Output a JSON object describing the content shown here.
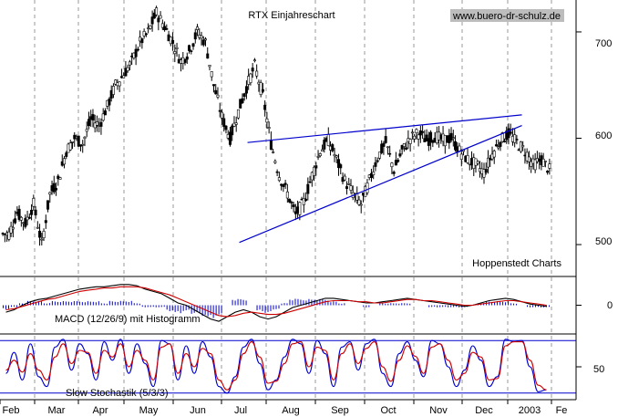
{
  "chart_data": [
    {
      "type": "candlestick",
      "title": "RTX Einjahreschart",
      "watermark": "www.buero-dr-schulz.de",
      "credit": "Hoppenstedt Charts",
      "y_ticks": [
        "700",
        "600",
        "500"
      ],
      "y_tick_values": [
        700,
        600,
        500
      ],
      "ylim": [
        470,
        730
      ],
      "x_tick_labels": [
        "Feb",
        "Mar",
        "Apr",
        "May",
        "Jun",
        "Jul",
        "Aug",
        "Sep",
        "Oct",
        "Nov",
        "Dec",
        "2003",
        "Fe"
      ],
      "close_series": [
        510,
        530,
        520,
        538,
        500,
        548,
        560,
        588,
        600,
        595,
        618,
        612,
        630,
        650,
        660,
        672,
        690,
        700,
        718,
        705,
        690,
        672,
        682,
        700,
        690,
        650,
        620,
        600,
        625,
        648,
        668,
        640,
        595,
        565,
        548,
        528,
        540,
        565,
        588,
        598,
        580,
        560,
        548,
        538,
        560,
        582,
        596,
        570,
        588,
        600,
        605,
        598,
        602,
        598,
        600,
        588,
        580,
        575,
        568,
        585,
        598,
        604,
        596,
        588,
        575,
        580,
        570
      ],
      "trendlines": [
        {
          "from": {
            "x": 29.5,
            "y": 596
          },
          "to": {
            "x": 63,
            "y": 622
          }
        },
        {
          "from": {
            "x": 28.5,
            "y": 502
          },
          "to": {
            "x": 63,
            "y": 612
          }
        }
      ],
      "color": "#000000",
      "trendline_color": "#0000cc"
    },
    {
      "type": "line",
      "title": "MACD (12/26/9) mit Histogramm",
      "y_ticks": [
        "0"
      ],
      "y_tick_values": [
        0
      ],
      "ylim": [
        -25,
        25
      ],
      "series": [
        {
          "values": [
            -6,
            -4,
            0,
            3,
            5,
            6,
            8,
            10,
            12,
            14,
            15,
            16,
            16,
            17,
            18,
            18,
            17,
            14,
            12,
            10,
            6,
            2,
            0,
            -4,
            -8,
            -12,
            -14,
            -10,
            -6,
            -4,
            -6,
            -10,
            -12,
            -10,
            -6,
            -2,
            0,
            2,
            4,
            6,
            6,
            5,
            4,
            3,
            2,
            2,
            3,
            4,
            5,
            6,
            5,
            4,
            3,
            2,
            1,
            0,
            -1,
            0,
            2,
            4,
            5,
            6,
            5,
            3,
            1,
            0,
            -1
          ],
          "color": "#000000"
        },
        {
          "values": [
            -4,
            -3,
            -1,
            1,
            3,
            5,
            6,
            8,
            10,
            12,
            13,
            14,
            15,
            15,
            16,
            16,
            16,
            15,
            13,
            11,
            9,
            6,
            3,
            0,
            -3,
            -6,
            -9,
            -10,
            -9,
            -7,
            -6,
            -7,
            -8,
            -8,
            -7,
            -5,
            -3,
            -1,
            1,
            3,
            4,
            4,
            4,
            3,
            3,
            2,
            2,
            3,
            4,
            5,
            5,
            4,
            4,
            3,
            2,
            1,
            0,
            0,
            1,
            2,
            3,
            4,
            4,
            3,
            2,
            1,
            0
          ],
          "color": "#cc0000"
        }
      ],
      "histogram": [
        -2,
        -1,
        1,
        2,
        2,
        1,
        2,
        2,
        2,
        2,
        2,
        2,
        1,
        2,
        2,
        2,
        1,
        -1,
        -1,
        -1,
        -3,
        -4,
        -3,
        -4,
        -5,
        -6,
        -5,
        0,
        3,
        3,
        0,
        -3,
        -4,
        -2,
        1,
        3,
        3,
        3,
        3,
        3,
        2,
        1,
        0,
        0,
        -1,
        0,
        1,
        1,
        1,
        1,
        0,
        0,
        -1,
        -1,
        -1,
        -1,
        -1,
        0,
        1,
        2,
        2,
        2,
        1,
        0,
        -1,
        -1,
        -1
      ],
      "histogram_color": "#0000cc"
    },
    {
      "type": "line",
      "title": "Slow Stochastik (5/3/3)",
      "y_ticks": [
        "50"
      ],
      "y_tick_values": [
        50
      ],
      "ylim": [
        0,
        100
      ],
      "reference_lines": [
        90,
        10
      ],
      "series": [
        {
          "values": [
            40,
            72,
            30,
            85,
            35,
            20,
            80,
            92,
            45,
            85,
            70,
            30,
            88,
            60,
            92,
            40,
            85,
            55,
            20,
            90,
            85,
            30,
            82,
            40,
            88,
            65,
            20,
            10,
            35,
            80,
            92,
            55,
            15,
            30,
            65,
            92,
            85,
            40,
            90,
            70,
            20,
            80,
            88,
            45,
            85,
            92,
            40,
            20,
            70,
            88,
            60,
            35,
            90,
            85,
            50,
            20,
            45,
            82,
            60,
            20,
            35,
            92,
            88,
            90,
            50,
            12,
            15
          ],
          "color": "#0000cc"
        },
        {
          "values": [
            45,
            60,
            42,
            70,
            45,
            30,
            65,
            85,
            55,
            75,
            72,
            40,
            75,
            65,
            85,
            50,
            75,
            60,
            30,
            80,
            85,
            40,
            70,
            50,
            78,
            70,
            30,
            15,
            30,
            70,
            88,
            65,
            25,
            28,
            55,
            85,
            88,
            50,
            80,
            75,
            30,
            70,
            85,
            55,
            78,
            88,
            50,
            28,
            60,
            82,
            66,
            40,
            80,
            85,
            60,
            30,
            40,
            72,
            65,
            30,
            32,
            82,
            88,
            88,
            60,
            22,
            15
          ],
          "color": "#cc0000"
        }
      ]
    }
  ]
}
